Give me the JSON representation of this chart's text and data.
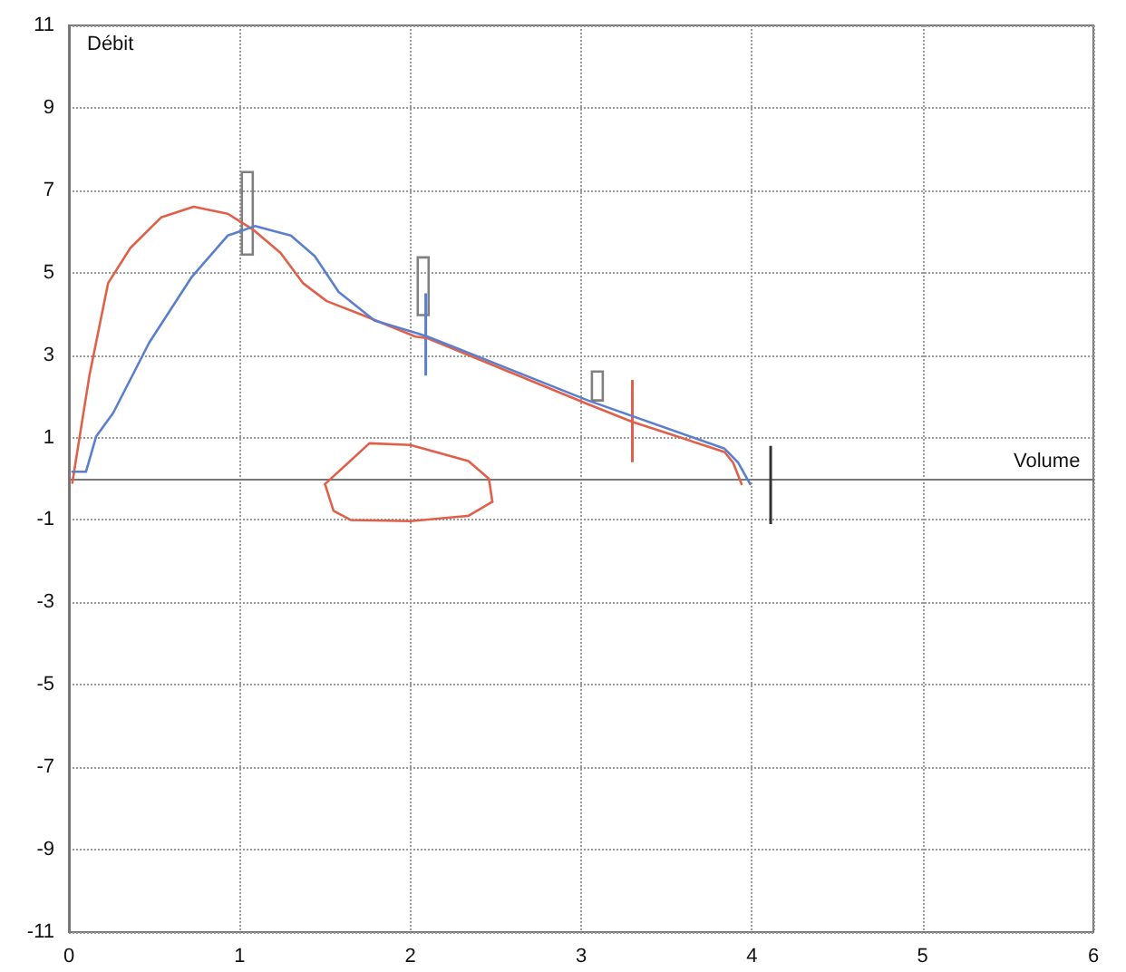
{
  "chart_data": {
    "type": "line",
    "xlabel": "Volume",
    "ylabel": "Débit",
    "xlim": [
      0,
      6
    ],
    "xticks": [
      0,
      1,
      2,
      3,
      4,
      5,
      6
    ],
    "ylim": [
      -11,
      11
    ],
    "yticks": [
      -11,
      -9,
      -7,
      -5,
      -3,
      -1,
      {
        "value": 0,
        "label": null
      },
      1,
      3,
      5,
      7,
      9,
      11
    ],
    "grid": true,
    "marker": "none",
    "line_style": "solid",
    "series": [
      {
        "color": "#e0604a",
        "x": [
          0.02,
          0.12,
          0.23,
          0.36,
          0.54,
          0.73,
          0.93,
          1.08,
          1.24,
          1.37,
          1.51,
          1.72,
          2.03,
          2.1,
          3.04,
          3.3,
          3.84,
          3.89,
          3.94
        ],
        "values": [
          -0.1,
          2.5,
          4.75,
          5.6,
          6.34,
          6.6,
          6.43,
          6.04,
          5.48,
          4.75,
          4.31,
          3.97,
          3.45,
          3.41,
          1.81,
          1.38,
          0.65,
          0.39,
          -0.13
        ]
      },
      {
        "color": "#e0604a",
        "x": [
          1.5,
          1.76,
          2.0,
          2.34,
          2.46,
          2.48
        ],
        "values": [
          -0.13,
          0.86,
          0.82,
          0.43,
          0.0,
          -0.56
        ]
      },
      {
        "color": "#e0604a",
        "x": [
          1.5,
          1.55,
          1.65,
          2.0,
          2.34,
          2.48
        ],
        "values": [
          -0.13,
          -0.78,
          -1.0,
          -1.03,
          -0.9,
          -0.56
        ]
      },
      {
        "color": "#5b7fcf",
        "x": [
          0.02,
          0.1,
          0.16,
          0.26,
          0.47,
          0.72,
          0.93,
          1.09,
          1.3,
          1.44,
          1.58,
          1.79,
          2.03,
          2.1,
          3.04,
          3.84,
          3.92,
          3.99
        ],
        "values": [
          0.17,
          0.17,
          1.03,
          1.6,
          3.3,
          4.9,
          5.9,
          6.13,
          5.9,
          5.4,
          4.53,
          3.84,
          3.54,
          3.45,
          1.9,
          0.73,
          0.39,
          -0.13
        ]
      },
      {
        "type": "bar",
        "color": "#808080",
        "x": [
          1.045,
          2.075,
          3.095
        ],
        "base": [
          5.44,
          3.97,
          1.9
        ],
        "values": [
          2.0,
          1.4,
          0.7
        ]
      },
      {
        "type": "bar",
        "colors": [
          "#5b7fcf",
          "#e0604a",
          "#333333"
        ],
        "x": [
          2.09,
          3.3,
          4.11
        ],
        "base": [
          2.5,
          0.4,
          -1.1
        ],
        "values": [
          2.0,
          2.0,
          1.9
        ]
      }
    ]
  }
}
